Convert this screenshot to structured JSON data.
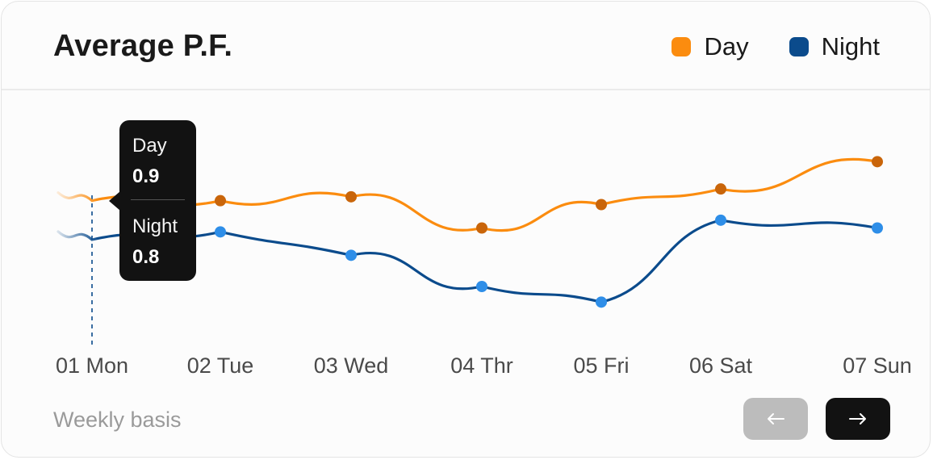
{
  "header": {
    "title": "Average P.F."
  },
  "legend": [
    {
      "label": "Day",
      "color": "#fb8c0f"
    },
    {
      "label": "Night",
      "color": "#0b4b8c"
    }
  ],
  "tooltip": {
    "day_label": "Day",
    "day_value": "0.9",
    "night_label": "Night",
    "night_value": "0.8"
  },
  "footer": {
    "note": "Weekly basis",
    "prev_icon": "arrow-left-icon",
    "next_icon": "arrow-right-icon"
  },
  "chart_data": {
    "type": "line",
    "categories": [
      "01 Mon",
      "02 Tue",
      "03 Wed",
      "04 Thr",
      "05 Fri",
      "06 Sat",
      "07 Sun"
    ],
    "series": [
      {
        "name": "Day",
        "color": "#fb8c0f",
        "marker_color": "#c9650a",
        "values": [
          0.9,
          0.9,
          0.91,
          0.83,
          0.89,
          0.93,
          1.0
        ]
      },
      {
        "name": "Night",
        "color": "#0b4b8c",
        "marker_color": "#2e8ee8",
        "values": [
          0.8,
          0.82,
          0.76,
          0.68,
          0.64,
          0.85,
          0.83
        ]
      }
    ],
    "ylim": [
      0.5,
      1.1
    ],
    "selected_index": 0,
    "grid": false
  }
}
